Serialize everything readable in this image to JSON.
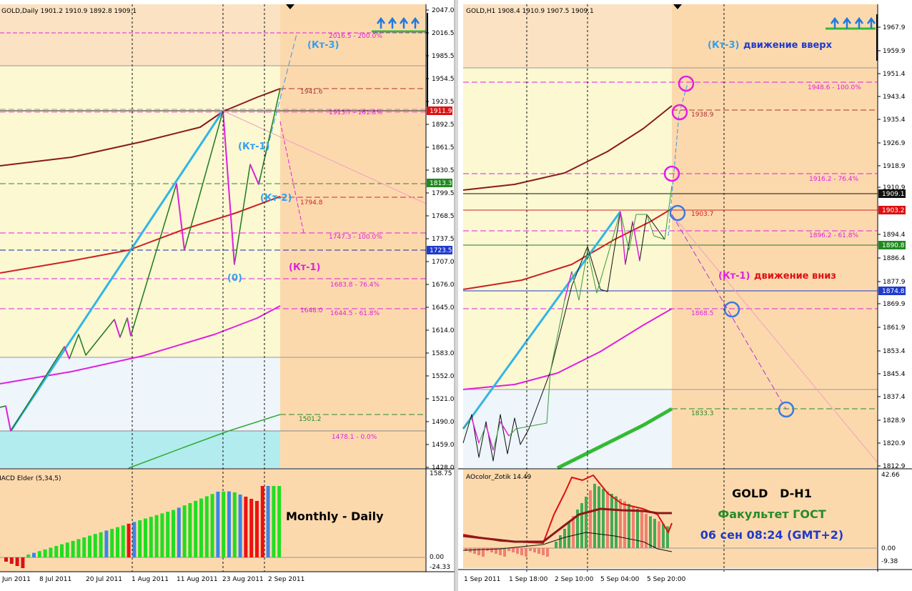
{
  "left_chart": {
    "header": "GOLD,Daily  1901.2 1910.9 1892.8 1909.1",
    "price_axis": [
      "2047.0",
      "2016.5",
      "1985.5",
      "1954.5",
      "1923.5",
      "1892.5",
      "1861.5",
      "1830.5",
      "1799.5",
      "1768.5",
      "1737.5",
      "1707.0",
      "1676.0",
      "1645.0",
      "1614.0",
      "1583.0",
      "1552.0",
      "1521.0",
      "1490.0",
      "1459.0",
      "1428.0"
    ],
    "price_flags": [
      "1911.9",
      "1813.3",
      "1723.5"
    ],
    "annotations": [
      "2016.5 - 200.0%",
      "1941.6",
      "1913.7 - 161.8%",
      "(Кт-3)",
      "(Кт-1)",
      "(Кт-2)",
      "1794.8",
      "1747.3 - 100.0%",
      "(0)",
      "(Кт-1)",
      "1683.8 - 76.4%",
      "1648.0",
      "1644.5 - 61.8%",
      "1501.2",
      "1478.1 - 0.0%"
    ],
    "indicator": {
      "title": "MACD Elder (5,34,5)",
      "label": "Monthly - Daily",
      "axis": [
        "158.75",
        "0.00",
        "-24.33"
      ]
    },
    "date_axis": [
      "Jun 2011",
      "8 Jul 2011",
      "20 Jul 2011",
      "1 Aug 2011",
      "11 Aug 2011",
      "23 Aug 2011",
      "2 Sep 2011"
    ]
  },
  "right_chart": {
    "header": "GOLD,H1  1908.4 1910.9 1907.5 1909.1",
    "price_axis": [
      "1967.9",
      "1959.9",
      "1951.4",
      "1943.4",
      "1935.4",
      "1926.9",
      "1918.9",
      "1910.9",
      "1894.4",
      "1886.4",
      "1877.9",
      "1869.9",
      "1861.9",
      "1853.4",
      "1845.4",
      "1837.4",
      "1828.9",
      "1820.9",
      "1812.9"
    ],
    "price_flags": [
      "1909.1",
      "1903.2",
      "1890.8",
      "1874.8"
    ],
    "annotations": [
      "(Кт-3)",
      "движение вверх",
      "1948.6 - 100.0%",
      "1938.9",
      "1916.2 - 76.4%",
      "1903.7",
      "1896.2 - 61.8%",
      "(Кт-1)",
      "движение вниз",
      "1868.5",
      "1833.3"
    ],
    "indicator": {
      "title": "AOcolor_Zotik 14.49",
      "axis": [
        "42.66",
        "0.00",
        "-9.38"
      ]
    },
    "info": [
      "GOLD   D-H1",
      "Факультет ГОСТ",
      "06 сен 08:24 (GMT+2)"
    ],
    "date_axis": [
      "1 Sep 2011",
      "1 Sep 18:00",
      "2 Sep 10:00",
      "5 Sep 04:00",
      "5 Sep 20:00"
    ]
  }
}
